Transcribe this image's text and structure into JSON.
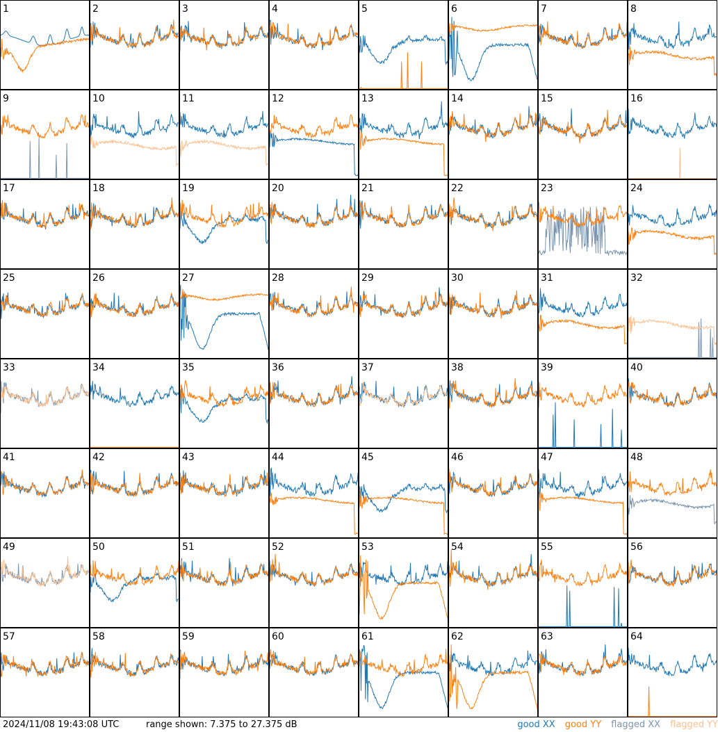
{
  "footer": {
    "timestamp": "2024/11/08 19:43:08 UTC",
    "range_text": "range shown: 7.375 to 27.375 dB"
  },
  "legend": [
    {
      "word": "good",
      "pol": "XX",
      "color": "#1f77b4"
    },
    {
      "word": "good",
      "pol": "YY",
      "color": "#ff7f0e"
    },
    {
      "word": "flagged",
      "pol": "XX",
      "color": "#7b95b0"
    },
    {
      "word": "flagged",
      "pol": "YY",
      "color": "#fcc090"
    }
  ],
  "chart_data": {
    "type": "line",
    "description_units": "dB",
    "ylim": [
      7.375,
      27.375
    ],
    "grid": {
      "rows": 8,
      "cols": 8
    },
    "series_colors": {
      "good_xx": "#1f77b4",
      "good_yy": "#ff7f0e",
      "flagged_xx": "#7b95b0",
      "flagged_yy": "#fcc090"
    },
    "panels": [
      {
        "label": "1",
        "xx": "bump",
        "yy": "dip",
        "xx_status": "good",
        "yy_status": "good"
      },
      {
        "label": "2",
        "xx": "normal",
        "yy": "normal",
        "xx_status": "good",
        "yy_status": "good"
      },
      {
        "label": "3",
        "xx": "normal",
        "yy": "normal",
        "xx_status": "good",
        "yy_status": "good"
      },
      {
        "label": "4",
        "xx": "normal",
        "yy": "normal",
        "xx_status": "good",
        "yy_status": "good"
      },
      {
        "label": "5",
        "xx": "lowdip",
        "yy": "dead",
        "xx_status": "good",
        "yy_status": "good"
      },
      {
        "label": "6",
        "xx": "deep",
        "yy": "highflat",
        "xx_status": "good",
        "yy_status": "good"
      },
      {
        "label": "7",
        "xx": "normal",
        "yy": "normal",
        "xx_status": "good",
        "yy_status": "good"
      },
      {
        "label": "8",
        "xx": "normal",
        "yy": "lowflat",
        "xx_status": "good",
        "yy_status": "good"
      },
      {
        "label": "9",
        "xx": "dead",
        "yy": "normal",
        "xx_status": "flagged",
        "yy_status": "good"
      },
      {
        "label": "10",
        "xx": "normal",
        "yy": "lowflat",
        "xx_status": "good",
        "yy_status": "flagged"
      },
      {
        "label": "11",
        "xx": "normal",
        "yy": "lowflat",
        "xx_status": "good",
        "yy_status": "flagged"
      },
      {
        "label": "12",
        "xx": "midflat",
        "yy": "normal",
        "xx_status": "good",
        "yy_status": "good"
      },
      {
        "label": "13",
        "xx": "normal",
        "yy": "midflat",
        "xx_status": "good",
        "yy_status": "good"
      },
      {
        "label": "14",
        "xx": "normal",
        "yy": "normal",
        "xx_status": "good",
        "yy_status": "good"
      },
      {
        "label": "15",
        "xx": "normal",
        "yy": "normal",
        "xx_status": "good",
        "yy_status": "good"
      },
      {
        "label": "16",
        "xx": "normal",
        "yy": "dead",
        "xx_status": "good",
        "yy_status": "flagged"
      },
      {
        "label": "17",
        "xx": "normal",
        "yy": "normal",
        "xx_status": "good",
        "yy_status": "good"
      },
      {
        "label": "18",
        "xx": "normal",
        "yy": "normal",
        "xx_status": "good",
        "yy_status": "good"
      },
      {
        "label": "19",
        "xx": "lowdip",
        "yy": "normal",
        "xx_status": "good",
        "yy_status": "good"
      },
      {
        "label": "20",
        "xx": "normal",
        "yy": "normal",
        "xx_status": "good",
        "yy_status": "good"
      },
      {
        "label": "21",
        "xx": "normal",
        "yy": "normal",
        "xx_status": "good",
        "yy_status": "good"
      },
      {
        "label": "22",
        "xx": "normal",
        "yy": "normal",
        "xx_status": "good",
        "yy_status": "good"
      },
      {
        "label": "23",
        "xx": "noise",
        "yy": "normal",
        "xx_status": "flagged",
        "yy_status": "good"
      },
      {
        "label": "24",
        "xx": "normal",
        "yy": "lowflat",
        "xx_status": "good",
        "yy_status": "good"
      },
      {
        "label": "25",
        "xx": "normal",
        "yy": "normal",
        "xx_status": "good",
        "yy_status": "good"
      },
      {
        "label": "26",
        "xx": "normal",
        "yy": "normal",
        "xx_status": "good",
        "yy_status": "good"
      },
      {
        "label": "27",
        "xx": "deep",
        "yy": "highflat",
        "xx_status": "good",
        "yy_status": "good"
      },
      {
        "label": "28",
        "xx": "normal",
        "yy": "normal",
        "xx_status": "good",
        "yy_status": "good"
      },
      {
        "label": "29",
        "xx": "normal",
        "yy": "normal",
        "xx_status": "good",
        "yy_status": "good"
      },
      {
        "label": "30",
        "xx": "normal",
        "yy": "normal",
        "xx_status": "good",
        "yy_status": "good"
      },
      {
        "label": "31",
        "xx": "normal",
        "yy": "lowflat",
        "xx_status": "good",
        "yy_status": "good"
      },
      {
        "label": "32",
        "xx": "dead",
        "yy": "lowflat",
        "xx_status": "flagged",
        "yy_status": "flagged"
      },
      {
        "label": "33",
        "xx": "normal",
        "yy": "normal",
        "xx_status": "flagged",
        "yy_status": "flagged"
      },
      {
        "label": "34",
        "xx": "normal",
        "yy": "dead",
        "xx_status": "good",
        "yy_status": "good"
      },
      {
        "label": "35",
        "xx": "lowdip",
        "yy": "normal",
        "xx_status": "good",
        "yy_status": "good"
      },
      {
        "label": "36",
        "xx": "normal",
        "yy": "normal",
        "xx_status": "good",
        "yy_status": "good"
      },
      {
        "label": "37",
        "xx": "normal",
        "yy": "normal",
        "xx_status": "good",
        "yy_status": "flagged"
      },
      {
        "label": "38",
        "xx": "normal",
        "yy": "normal",
        "xx_status": "good",
        "yy_status": "good"
      },
      {
        "label": "39",
        "xx": "dead",
        "yy": "normal",
        "xx_status": "good",
        "yy_status": "good"
      },
      {
        "label": "40",
        "xx": "normal",
        "yy": "normal",
        "xx_status": "good",
        "yy_status": "good"
      },
      {
        "label": "41",
        "xx": "normal",
        "yy": "normal",
        "xx_status": "good",
        "yy_status": "good"
      },
      {
        "label": "42",
        "xx": "normal",
        "yy": "normal",
        "xx_status": "good",
        "yy_status": "good"
      },
      {
        "label": "43",
        "xx": "normal",
        "yy": "normal",
        "xx_status": "good",
        "yy_status": "good"
      },
      {
        "label": "44",
        "xx": "normal",
        "yy": "midflat",
        "xx_status": "good",
        "yy_status": "good"
      },
      {
        "label": "45",
        "xx": "lowdip",
        "yy": "midflat",
        "xx_status": "good",
        "yy_status": "good"
      },
      {
        "label": "46",
        "xx": "normal",
        "yy": "normal",
        "xx_status": "good",
        "yy_status": "good"
      },
      {
        "label": "47",
        "xx": "normal",
        "yy": "midflat",
        "xx_status": "good",
        "yy_status": "good"
      },
      {
        "label": "48",
        "xx": "lowflat",
        "yy": "normal",
        "xx_status": "flagged",
        "yy_status": "good"
      },
      {
        "label": "49",
        "xx": "normal",
        "yy": "normal",
        "xx_status": "flagged",
        "yy_status": "flagged"
      },
      {
        "label": "50",
        "xx": "lowdip",
        "yy": "normal",
        "xx_status": "good",
        "yy_status": "good"
      },
      {
        "label": "51",
        "xx": "normal",
        "yy": "normal",
        "xx_status": "good",
        "yy_status": "good"
      },
      {
        "label": "52",
        "xx": "normal",
        "yy": "normal",
        "xx_status": "good",
        "yy_status": "good"
      },
      {
        "label": "53",
        "xx": "normal",
        "yy": "deep",
        "xx_status": "good",
        "yy_status": "good"
      },
      {
        "label": "54",
        "xx": "normal",
        "yy": "normal",
        "xx_status": "good",
        "yy_status": "good"
      },
      {
        "label": "55",
        "xx": "dead",
        "yy": "normal",
        "xx_status": "good",
        "yy_status": "good"
      },
      {
        "label": "56",
        "xx": "normal",
        "yy": "normal",
        "xx_status": "good",
        "yy_status": "good"
      },
      {
        "label": "57",
        "xx": "normal",
        "yy": "normal",
        "xx_status": "good",
        "yy_status": "good"
      },
      {
        "label": "58",
        "xx": "normal",
        "yy": "normal",
        "xx_status": "good",
        "yy_status": "good"
      },
      {
        "label": "59",
        "xx": "normal",
        "yy": "normal",
        "xx_status": "good",
        "yy_status": "good"
      },
      {
        "label": "60",
        "xx": "normal",
        "yy": "normal",
        "xx_status": "good",
        "yy_status": "good"
      },
      {
        "label": "61",
        "xx": "deep",
        "yy": "normal",
        "xx_status": "good",
        "yy_status": "good"
      },
      {
        "label": "62",
        "xx": "normal",
        "yy": "deep",
        "xx_status": "good",
        "yy_status": "good"
      },
      {
        "label": "63",
        "xx": "normal",
        "yy": "normal",
        "xx_status": "good",
        "yy_status": "good"
      },
      {
        "label": "64",
        "xx": "normal",
        "yy": "dead",
        "xx_status": "good",
        "yy_status": "good"
      }
    ]
  }
}
